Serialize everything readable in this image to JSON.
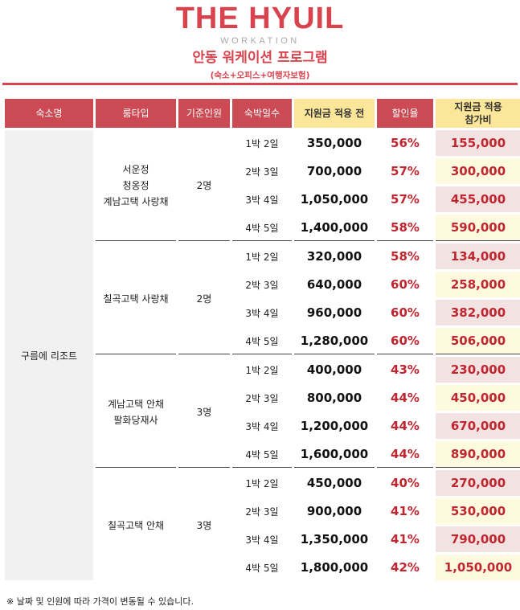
{
  "brand": {
    "logo": "THE HYUIL",
    "sub": "WORKATION"
  },
  "title": "안동 워케이션 프로그램",
  "subtitle": "(숙소+오피스+여행자보험)",
  "headers": [
    "숙소명",
    "룸타입",
    "기준인원",
    "숙박일수",
    "지원금 적용 전",
    "할인율",
    "지원금 적용\n참가비"
  ],
  "lodging": "구름에 리조트",
  "groups": [
    {
      "room": "서운정\n청옹정\n계남고택 사랑채",
      "base": "2명",
      "rows": [
        {
          "nights": "1박 2일",
          "price": "350,000",
          "rate": "56%",
          "final": "155,000"
        },
        {
          "nights": "2박 3일",
          "price": "700,000",
          "rate": "57%",
          "final": "300,000"
        },
        {
          "nights": "3박 4일",
          "price": "1,050,000",
          "rate": "57%",
          "final": "455,000"
        },
        {
          "nights": "4박 5일",
          "price": "1,400,000",
          "rate": "58%",
          "final": "590,000"
        }
      ]
    },
    {
      "room": "칠곡고택 사랑채",
      "base": "2명",
      "rows": [
        {
          "nights": "1박 2일",
          "price": "320,000",
          "rate": "58%",
          "final": "134,000"
        },
        {
          "nights": "2박 3일",
          "price": "640,000",
          "rate": "60%",
          "final": "258,000"
        },
        {
          "nights": "3박 4일",
          "price": "960,000",
          "rate": "60%",
          "final": "382,000"
        },
        {
          "nights": "4박 5일",
          "price": "1,280,000",
          "rate": "60%",
          "final": "506,000"
        }
      ]
    },
    {
      "room": "계남고택 안채\n팔화당재사",
      "base": "3명",
      "rows": [
        {
          "nights": "1박 2일",
          "price": "400,000",
          "rate": "43%",
          "final": "230,000"
        },
        {
          "nights": "2박 3일",
          "price": "800,000",
          "rate": "44%",
          "final": "450,000"
        },
        {
          "nights": "3박 4일",
          "price": "1,200,000",
          "rate": "44%",
          "final": "670,000"
        },
        {
          "nights": "4박 5일",
          "price": "1,600,000",
          "rate": "44%",
          "final": "890,000"
        }
      ]
    },
    {
      "room": "칠곡고택 안채",
      "base": "3명",
      "rows": [
        {
          "nights": "1박 2일",
          "price": "450,000",
          "rate": "40%",
          "final": "270,000"
        },
        {
          "nights": "2박 3일",
          "price": "900,000",
          "rate": "41%",
          "final": "530,000"
        },
        {
          "nights": "3박 4일",
          "price": "1,350,000",
          "rate": "41%",
          "final": "790,000"
        },
        {
          "nights": "4박 5일",
          "price": "1,800,000",
          "rate": "42%",
          "final": "1,050,000"
        }
      ]
    }
  ],
  "note": "※ 날짜 및 인원에 따라 가격이 변동될 수 있습니다.",
  "colors": {
    "accent": "#d9434e",
    "header": "#cc4a53",
    "highlight": "#fbe699"
  }
}
